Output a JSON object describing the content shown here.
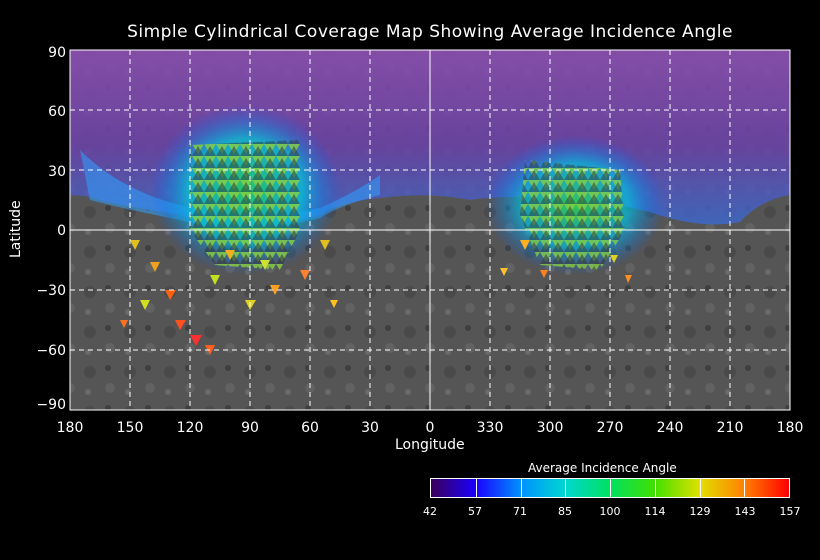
{
  "title": "Simple Cylindrical Coverage Map Showing Average Incidence Angle",
  "axes": {
    "x_label": "Longitude",
    "y_label": "Latitude",
    "x_ticks": [
      "180",
      "150",
      "120",
      "90",
      "60",
      "30",
      "0",
      "330",
      "300",
      "270",
      "240",
      "210",
      "180"
    ],
    "y_ticks": [
      "90",
      "60",
      "30",
      "0",
      "−30",
      "−60",
      "−90"
    ]
  },
  "legend": {
    "title": "Average Incidence Angle",
    "labels": [
      "42",
      "57",
      "71",
      "85",
      "100",
      "114",
      "129",
      "143",
      "157"
    ],
    "colors": [
      "#3a005a",
      "#1a00ff",
      "#0090ff",
      "#00d8d0",
      "#00e060",
      "#40e000",
      "#e0e000",
      "#ff8000",
      "#ff0000"
    ]
  },
  "colors": {
    "background": "#000000",
    "surface": "#5a5a5a",
    "north_overlay": "#7a4aa0",
    "grid": "#ffffff"
  }
}
